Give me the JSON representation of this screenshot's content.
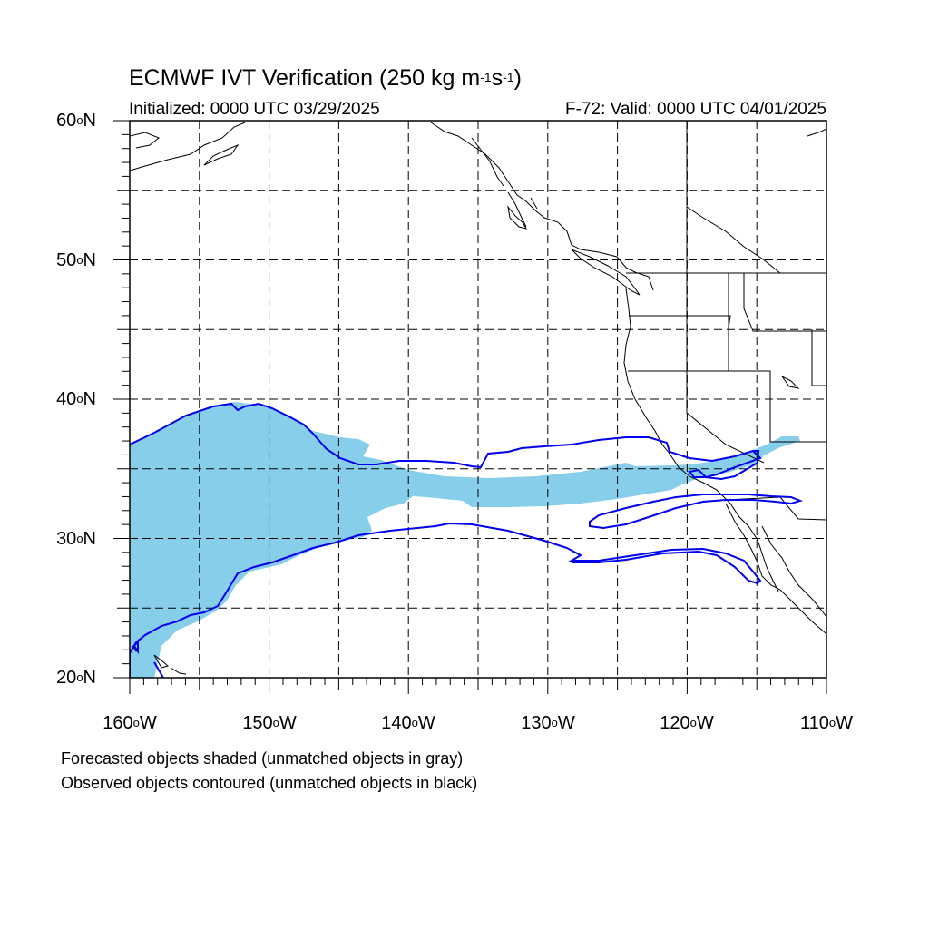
{
  "title": {
    "main": "ECMWF IVT Verification (250 kg m",
    "sup1": "-1",
    "mid": "s",
    "sup2": "-1",
    "end": ")"
  },
  "subtitle": {
    "initialized": "Initialized: 0000 UTC 03/29/2025",
    "valid": "F-72: Valid: 0000 UTC 04/01/2025"
  },
  "map": {
    "projection": "equirectangular",
    "lon_range": [
      -160,
      -110
    ],
    "lat_range": [
      20,
      60
    ],
    "grid_spacing_deg": 5,
    "lat_labels": [
      "60oN",
      "50oN",
      "40oN",
      "30oN",
      "20oN"
    ],
    "lon_labels": [
      "160oW",
      "150oW",
      "140oW",
      "130oW",
      "120oW",
      "110oW"
    ],
    "colors": {
      "forecast_fill": "#87ceeb",
      "observed_contour": "#0000ee",
      "coast": "#000000",
      "grid": "#000000"
    }
  },
  "notes": {
    "line1": "Forecasted objects shaded (unmatched objects in gray)",
    "line2": "Observed objects contoured (unmatched objects in black)"
  }
}
